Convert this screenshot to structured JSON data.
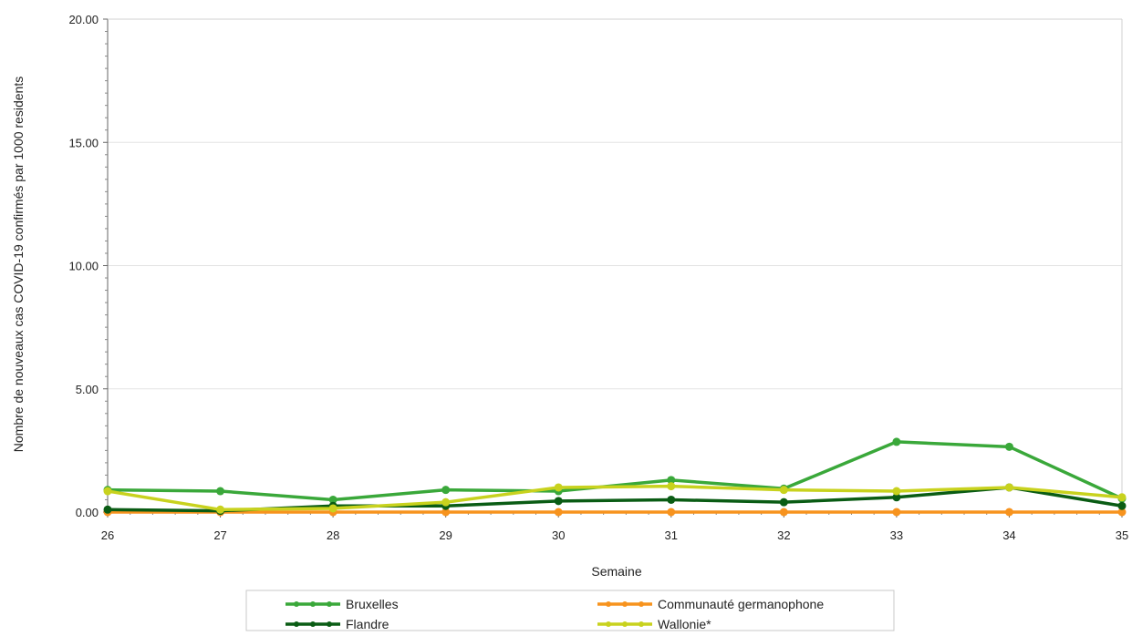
{
  "chart_data": {
    "type": "line",
    "title": "",
    "xlabel": "Semaine",
    "ylabel": "Nombre de nouveaux cas COVID-19 confirmés par 1000 residents",
    "x": [
      26,
      27,
      28,
      29,
      30,
      31,
      32,
      33,
      34,
      35
    ],
    "x_tick_labels": [
      "26",
      "27",
      "28",
      "29",
      "30",
      "31",
      "32",
      "33",
      "34",
      "35"
    ],
    "xlim": [
      26,
      35
    ],
    "ylim": [
      0,
      20
    ],
    "y_ticks": [
      0,
      5,
      10,
      15,
      20
    ],
    "y_tick_labels": [
      "0.00",
      "5.00",
      "10.00",
      "15.00",
      "20.00"
    ],
    "grid": "horizontal",
    "legend_position": "bottom",
    "series": [
      {
        "name": "Bruxelles",
        "color": "#3aa83a",
        "values": [
          0.9,
          0.85,
          0.5,
          0.9,
          0.85,
          1.3,
          0.95,
          2.85,
          2.65,
          0.55
        ]
      },
      {
        "name": "Communauté germanophone",
        "color": "#f7931e",
        "values": [
          0.0,
          0.0,
          0.0,
          0.0,
          0.0,
          0.0,
          0.0,
          0.0,
          0.0,
          0.0
        ]
      },
      {
        "name": "Flandre",
        "color": "#0a5c14",
        "values": [
          0.1,
          0.05,
          0.25,
          0.25,
          0.45,
          0.5,
          0.4,
          0.6,
          1.0,
          0.25
        ]
      },
      {
        "name": "Wallonie*",
        "color": "#c8d21e",
        "values": [
          0.85,
          0.1,
          0.15,
          0.4,
          1.0,
          1.05,
          0.9,
          0.85,
          1.0,
          0.6
        ]
      }
    ]
  }
}
